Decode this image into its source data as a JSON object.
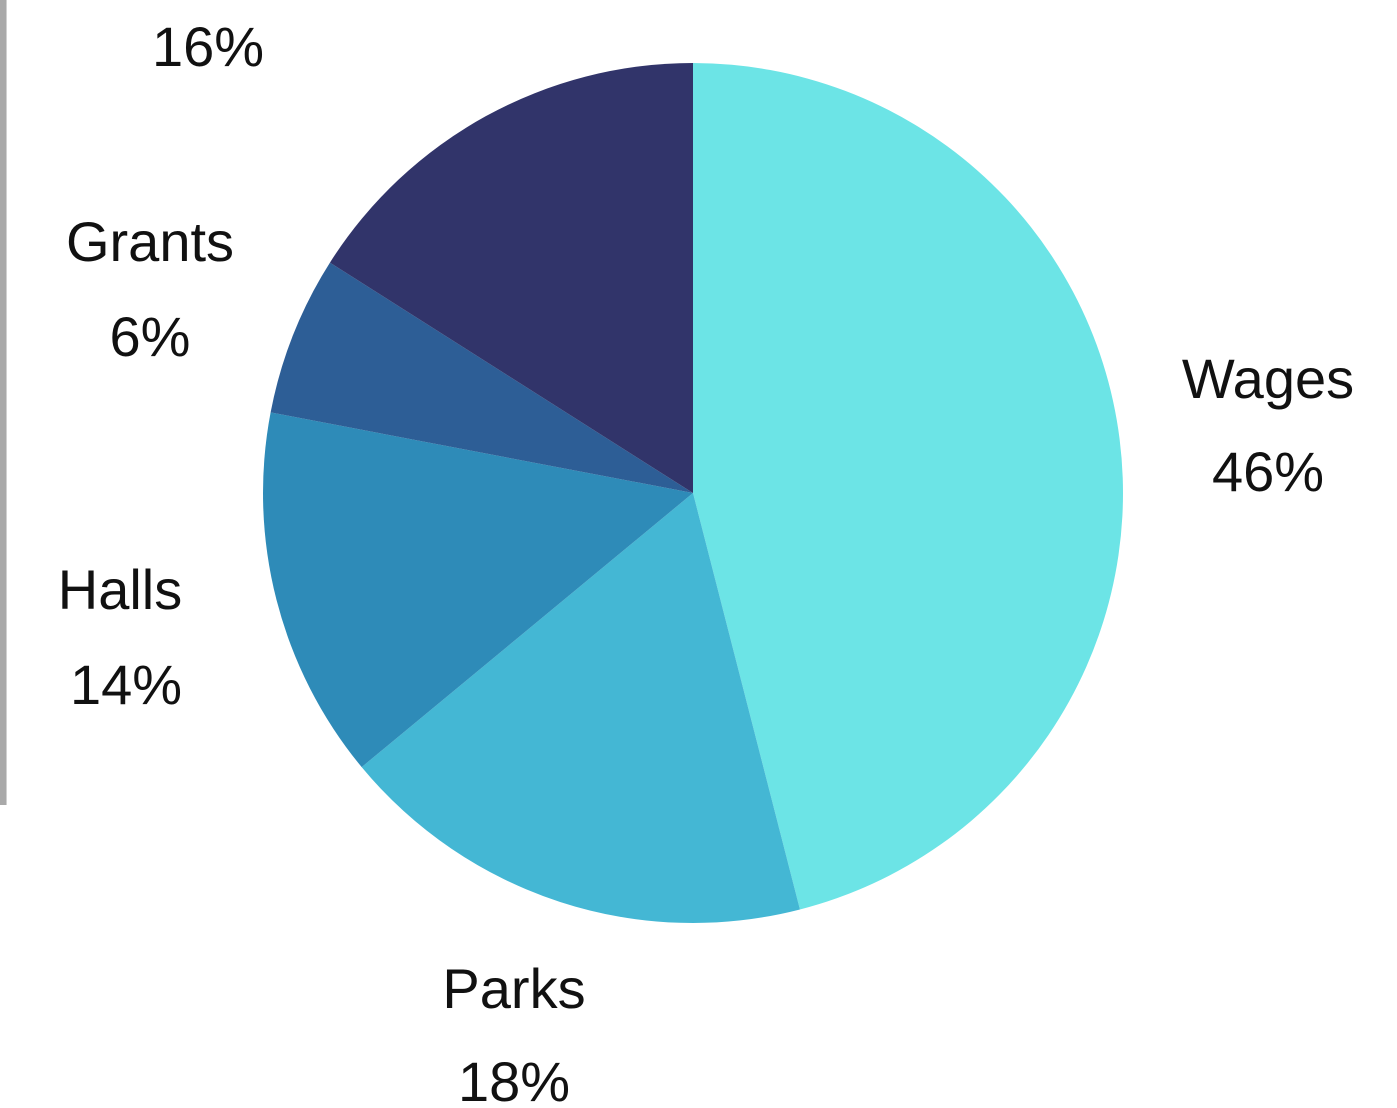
{
  "chart_data": {
    "type": "pie",
    "title": "",
    "slices": [
      {
        "name": "Wages",
        "value": 46,
        "value_label": "46%",
        "color": "#6ce4e6"
      },
      {
        "name": "Parks",
        "value": 18,
        "value_label": "18%",
        "color": "#44b7d4"
      },
      {
        "name": "Halls",
        "value": 14,
        "value_label": "14%",
        "color": "#2e8bb8"
      },
      {
        "name": "Grants",
        "value": 6,
        "value_label": "6%",
        "color": "#2d5e96"
      },
      {
        "name": "",
        "value": 16,
        "value_label": "16%",
        "color": "#31346a"
      }
    ],
    "start_angle_deg": 0,
    "direction": "clockwise",
    "legend": "none",
    "labels": "outside"
  }
}
